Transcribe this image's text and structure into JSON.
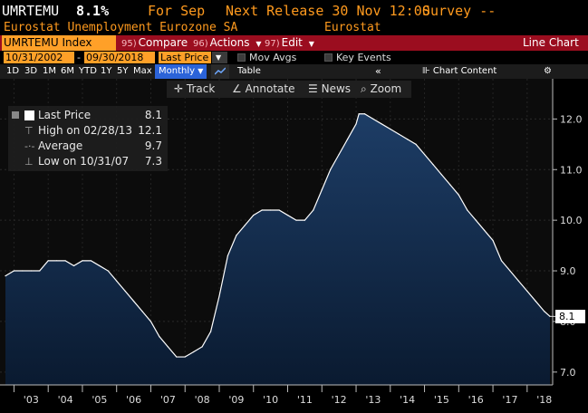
{
  "header": {
    "ticker": "UMRTEMU",
    "value": "8.1%",
    "period_label": "For Sep",
    "next_release": "Next Release 30 Nov 12:00",
    "survey": "Survey --",
    "name": "Eurostat Unemployment Eurozone SA",
    "source": "Eurostat"
  },
  "menubar": {
    "ticker_index": "UMRTEMU Index",
    "compare_num": "95)",
    "compare_label": "Compare",
    "actions_num": "96)",
    "actions_label": "Actions",
    "edit_num": "97)",
    "edit_label": "Edit",
    "chart_type": "Line Chart"
  },
  "datebar": {
    "start_date": "10/31/2002",
    "end_date": "09/30/2018",
    "price_field": "Last Price",
    "mov_avgs": "Mov Avgs",
    "key_events": "Key Events"
  },
  "toolbar": {
    "ranges": [
      "1D",
      "3D",
      "1M",
      "6M",
      "YTD",
      "1Y",
      "5Y",
      "Max"
    ],
    "frequency": "Monthly",
    "table_label": "Table",
    "chart_content": "Chart Content"
  },
  "chart_tools": {
    "track": "Track",
    "annotate": "Annotate",
    "news": "News",
    "zoom": "Zoom"
  },
  "legend": {
    "last_price_label": "Last Price",
    "last_price_value": "8.1",
    "high_label": "High on 02/28/13",
    "high_value": "12.1",
    "average_label": "Average",
    "average_value": "9.7",
    "low_label": "Low on 10/31/07",
    "low_value": "7.3"
  },
  "colors": {
    "area_top": "#1d3d66",
    "area_bottom": "#0a1a30",
    "line": "#ffffff",
    "menubar": "#9b0d1f",
    "accent_orange": "#ffa028"
  },
  "chart_data": {
    "type": "area",
    "ylim": [
      6.8,
      12.4
    ],
    "yticks": [
      "12.0",
      "11.0",
      "10.0",
      "9.0",
      "8.0",
      "7.0"
    ],
    "yticks_values": [
      12.0,
      11.0,
      10.0,
      9.0,
      8.0,
      7.0
    ],
    "xticks": [
      "'03",
      "'04",
      "'05",
      "'06",
      "'07",
      "'08",
      "'09",
      "'10",
      "'11",
      "'12",
      "'13",
      "'14",
      "'15",
      "'16",
      "'17",
      "'18"
    ],
    "last_value_label": "8.1",
    "x": [
      "2002-10",
      "2003-01",
      "2003-04",
      "2003-07",
      "2003-10",
      "2004-01",
      "2004-04",
      "2004-07",
      "2004-10",
      "2005-01",
      "2005-04",
      "2005-07",
      "2005-10",
      "2006-01",
      "2006-04",
      "2006-07",
      "2006-10",
      "2007-01",
      "2007-04",
      "2007-07",
      "2007-10",
      "2008-01",
      "2008-04",
      "2008-07",
      "2008-10",
      "2009-01",
      "2009-04",
      "2009-07",
      "2009-10",
      "2010-01",
      "2010-04",
      "2010-07",
      "2010-10",
      "2011-01",
      "2011-04",
      "2011-07",
      "2011-10",
      "2012-01",
      "2012-04",
      "2012-07",
      "2012-10",
      "2013-01",
      "2013-02",
      "2013-04",
      "2013-07",
      "2013-10",
      "2014-01",
      "2014-04",
      "2014-07",
      "2014-10",
      "2015-01",
      "2015-04",
      "2015-07",
      "2015-10",
      "2016-01",
      "2016-04",
      "2016-07",
      "2016-10",
      "2017-01",
      "2017-04",
      "2017-07",
      "2017-10",
      "2018-01",
      "2018-04",
      "2018-07",
      "2018-09"
    ],
    "values": [
      8.9,
      9.0,
      9.0,
      9.0,
      9.0,
      9.2,
      9.2,
      9.2,
      9.1,
      9.2,
      9.2,
      9.1,
      9.0,
      8.8,
      8.6,
      8.4,
      8.2,
      8.0,
      7.7,
      7.5,
      7.3,
      7.3,
      7.4,
      7.5,
      7.8,
      8.5,
      9.3,
      9.7,
      9.9,
      10.1,
      10.2,
      10.2,
      10.2,
      10.1,
      10.0,
      10.0,
      10.2,
      10.6,
      11.0,
      11.3,
      11.6,
      11.9,
      12.1,
      12.1,
      12.0,
      11.9,
      11.8,
      11.7,
      11.6,
      11.5,
      11.3,
      11.1,
      10.9,
      10.7,
      10.5,
      10.2,
      10.0,
      9.8,
      9.6,
      9.2,
      9.0,
      8.8,
      8.6,
      8.4,
      8.2,
      8.1
    ]
  }
}
